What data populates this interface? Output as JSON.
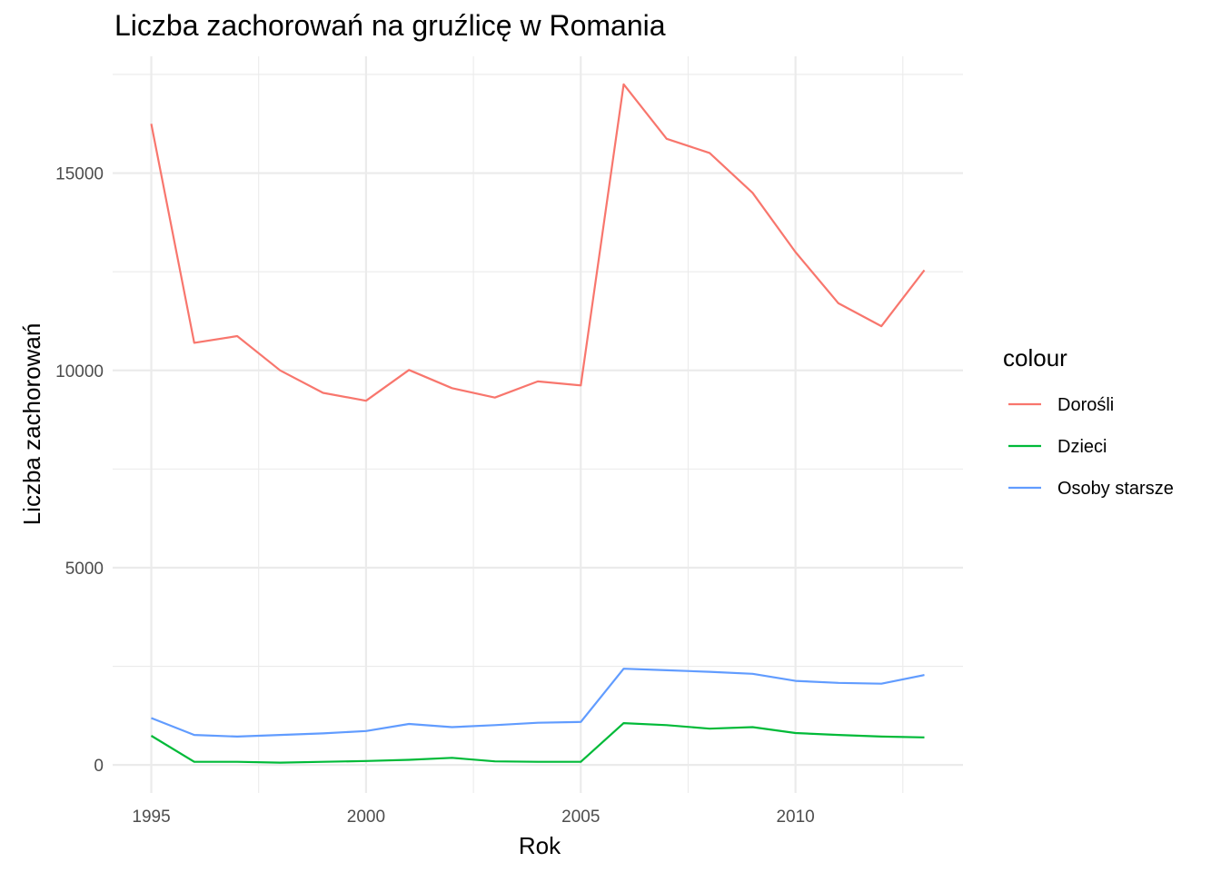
{
  "chart_data": {
    "type": "line",
    "title": "Liczba zachorowań na gruźlicę w Romania",
    "xlabel": "Rok",
    "ylabel": "Liczba zachorowań",
    "x": [
      1995,
      1996,
      1997,
      1998,
      1999,
      2000,
      2001,
      2002,
      2003,
      2004,
      2005,
      2006,
      2007,
      2008,
      2009,
      2010,
      2011,
      2012,
      2013
    ],
    "series": [
      {
        "name": "Dorośli",
        "color": "#F8766D",
        "values": [
          16250,
          10700,
          10870,
          10000,
          9430,
          9230,
          10010,
          9550,
          9310,
          9720,
          9620,
          17250,
          15870,
          15510,
          14500,
          13000,
          11700,
          11120,
          12540
        ]
      },
      {
        "name": "Dzieci",
        "color": "#00BA38",
        "values": [
          740,
          80,
          80,
          60,
          80,
          100,
          130,
          180,
          90,
          80,
          80,
          1060,
          1010,
          920,
          960,
          810,
          760,
          720,
          700
        ]
      },
      {
        "name": "Osoby starsze",
        "color": "#619CFF",
        "values": [
          1190,
          760,
          720,
          760,
          800,
          860,
          1040,
          960,
          1010,
          1070,
          1090,
          2440,
          2400,
          2360,
          2310,
          2130,
          2080,
          2060,
          2280
        ]
      }
    ],
    "xticks": [
      1995,
      2000,
      2005,
      2010
    ],
    "xtick_labels": [
      "1995",
      "2000",
      "2005",
      "2010"
    ],
    "yticks": [
      0,
      5000,
      10000,
      15000
    ],
    "ytick_labels": [
      "0",
      "5000",
      "10000",
      "15000"
    ],
    "xlim": [
      1994.1,
      2013.9
    ],
    "ylim": [
      -710,
      17960
    ],
    "grid": true,
    "legend": {
      "title": "colour",
      "position": "right"
    }
  }
}
